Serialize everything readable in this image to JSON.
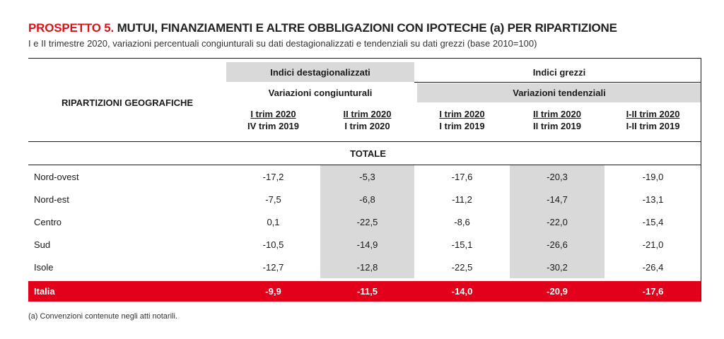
{
  "title": {
    "prefix": "PROSPETTO 5.",
    "main": " MUTUI, FINANZIAMENTI E ALTRE OBBLIGAZIONI CON IPOTECHE (a) PER RIPARTIZIONE"
  },
  "subtitle": "I e II trimestre 2020, variazioni percentuali congiunturali su dati destagionalizzati e tendenziali su dati grezzi (base 2010=100)",
  "header": {
    "row_label": "RIPARTIZIONI GEOGRAFICHE",
    "group1": "Indici destagionalizzati",
    "group2": "Indici grezzi",
    "sub1": "Variazioni congiunturali",
    "sub2": "Variazioni tendenziali",
    "columns": [
      {
        "line1": "I trim 2020",
        "line2": "IV trim 2019"
      },
      {
        "line1": "II trim 2020",
        "line2": "I trim 2020"
      },
      {
        "line1": "I trim 2020",
        "line2": "I trim 2019"
      },
      {
        "line1": "II trim 2020",
        "line2": "II trim 2019"
      },
      {
        "line1": "I-II trim 2020",
        "line2": "I-II trim 2019"
      }
    ]
  },
  "section_label": "TOTALE",
  "rows": [
    {
      "label": "Nord-ovest",
      "values": [
        "-17,2",
        "-5,3",
        "-17,6",
        "-20,3",
        "-19,0"
      ]
    },
    {
      "label": "Nord-est",
      "values": [
        "-7,5",
        "-6,8",
        "-11,2",
        "-14,7",
        "-13,1"
      ]
    },
    {
      "label": "Centro",
      "values": [
        "0,1",
        "-22,5",
        "-8,6",
        "-22,0",
        "-15,4"
      ]
    },
    {
      "label": "Sud",
      "values": [
        "-10,5",
        "-14,9",
        "-15,1",
        "-26,6",
        "-21,0"
      ]
    },
    {
      "label": "Isole",
      "values": [
        "-12,7",
        "-12,8",
        "-22,5",
        "-30,2",
        "-26,4"
      ]
    },
    {
      "label": "Italia",
      "values": [
        "-9,9",
        "-11,5",
        "-14,0",
        "-20,9",
        "-17,6"
      ]
    }
  ],
  "footnote": "(a) Convenzioni contenute negli atti notarili.",
  "colors": {
    "accent_red": "#d8141a",
    "highlight_row": "#e3001b",
    "shade": "#d9d9d9"
  }
}
